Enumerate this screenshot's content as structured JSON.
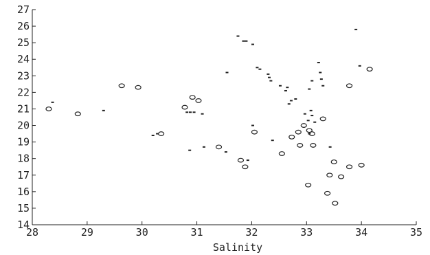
{
  "chart_data": {
    "type": "scatter",
    "title": "",
    "xlabel": "Salinity",
    "ylabel": "",
    "xlim": [
      28,
      35
    ],
    "ylim": [
      14,
      27
    ],
    "x_ticks": [
      "28",
      "29",
      "30",
      "31",
      "32",
      "33",
      "34",
      "35"
    ],
    "y_ticks": [
      "14",
      "15",
      "16",
      "17",
      "18",
      "19",
      "20",
      "21",
      "22",
      "23",
      "24",
      "25",
      "26",
      "27"
    ],
    "grid": false,
    "legend": "none",
    "colors": {
      "ink": "#222222",
      "background": "#ffffff"
    },
    "series": [
      {
        "marker": "diamond",
        "points": [
          [
            28.3,
            21.0
          ],
          [
            28.83,
            20.7
          ],
          [
            29.63,
            22.4
          ],
          [
            29.93,
            22.3
          ],
          [
            30.35,
            19.5
          ],
          [
            30.78,
            21.1
          ],
          [
            30.92,
            21.7
          ],
          [
            31.03,
            21.5
          ],
          [
            31.4,
            18.7
          ],
          [
            31.8,
            17.9
          ],
          [
            31.88,
            17.5
          ],
          [
            32.05,
            19.6
          ],
          [
            32.55,
            18.3
          ],
          [
            32.73,
            19.3
          ],
          [
            32.88,
            18.8
          ],
          [
            32.85,
            19.6
          ],
          [
            32.95,
            20.0
          ],
          [
            33.05,
            19.7
          ],
          [
            33.1,
            19.5
          ],
          [
            33.12,
            18.8
          ],
          [
            33.3,
            20.4
          ],
          [
            33.03,
            16.4
          ],
          [
            33.38,
            15.9
          ],
          [
            33.42,
            17.0
          ],
          [
            33.5,
            17.8
          ],
          [
            33.52,
            15.3
          ],
          [
            33.63,
            16.9
          ],
          [
            33.78,
            17.5
          ],
          [
            34.0,
            17.6
          ],
          [
            33.78,
            22.4
          ],
          [
            34.15,
            23.4
          ]
        ]
      },
      {
        "marker": "dash",
        "points": [
          [
            28.37,
            21.4
          ],
          [
            29.3,
            20.9
          ],
          [
            30.2,
            19.4
          ],
          [
            30.28,
            19.5
          ],
          [
            30.82,
            20.8
          ],
          [
            30.88,
            20.8
          ],
          [
            30.95,
            20.8
          ],
          [
            31.1,
            20.7
          ],
          [
            30.87,
            18.5
          ],
          [
            31.13,
            18.7
          ],
          [
            31.53,
            18.4
          ],
          [
            31.93,
            17.9
          ],
          [
            31.55,
            23.2
          ],
          [
            31.75,
            25.4
          ],
          [
            31.85,
            25.1
          ],
          [
            31.9,
            25.1
          ],
          [
            32.02,
            24.9
          ],
          [
            32.1,
            23.5
          ],
          [
            32.15,
            23.4
          ],
          [
            32.3,
            23.1
          ],
          [
            32.32,
            22.9
          ],
          [
            32.35,
            22.7
          ],
          [
            32.52,
            22.4
          ],
          [
            32.62,
            22.1
          ],
          [
            32.65,
            22.3
          ],
          [
            32.68,
            21.3
          ],
          [
            32.72,
            21.5
          ],
          [
            32.8,
            21.6
          ],
          [
            32.97,
            20.7
          ],
          [
            33.03,
            20.3
          ],
          [
            33.08,
            20.9
          ],
          [
            33.1,
            20.6
          ],
          [
            33.15,
            20.2
          ],
          [
            33.05,
            22.2
          ],
          [
            33.1,
            22.7
          ],
          [
            33.22,
            23.8
          ],
          [
            33.25,
            23.2
          ],
          [
            33.27,
            22.8
          ],
          [
            33.3,
            22.4
          ],
          [
            33.05,
            19.5
          ],
          [
            32.38,
            19.1
          ],
          [
            33.43,
            18.7
          ],
          [
            33.9,
            25.8
          ],
          [
            33.97,
            23.6
          ],
          [
            32.02,
            20.0
          ]
        ]
      }
    ]
  }
}
